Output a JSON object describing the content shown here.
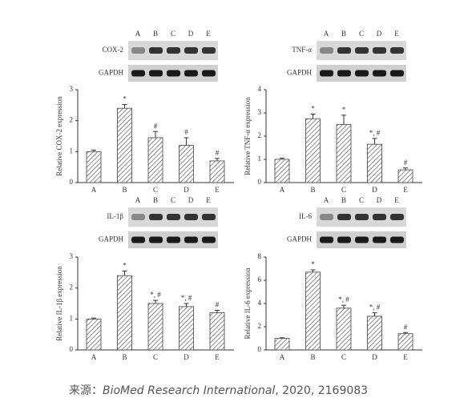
{
  "chart_data": [
    {
      "type": "bar",
      "y_label": "Relative COX-2 expression",
      "blot_lanes": [
        "A",
        "B",
        "C",
        "D",
        "E"
      ],
      "blot_rows": [
        "COX-2",
        "GAPDH"
      ],
      "categories": [
        "A",
        "B",
        "C",
        "D",
        "E"
      ],
      "values": [
        1.0,
        2.4,
        1.45,
        1.2,
        0.7
      ],
      "errors": [
        0.05,
        0.12,
        0.2,
        0.25,
        0.08
      ],
      "annotations": [
        null,
        "*",
        "#",
        "#",
        "#"
      ],
      "color": "#444444",
      "ylim": [
        0,
        3
      ],
      "yticks": [
        0,
        1,
        2,
        3
      ]
    },
    {
      "type": "bar",
      "y_label": "Relative TNF-α expression",
      "blot_lanes": [
        "A",
        "B",
        "C",
        "D",
        "E"
      ],
      "blot_rows": [
        "TNF-α",
        "GAPDH"
      ],
      "categories": [
        "A",
        "B",
        "C",
        "D",
        "E"
      ],
      "values": [
        1.0,
        2.75,
        2.5,
        1.65,
        0.55
      ],
      "errors": [
        0.05,
        0.2,
        0.4,
        0.25,
        0.08
      ],
      "annotations": [
        null,
        "*",
        "*",
        "*, #",
        "#"
      ],
      "color": "#444444",
      "ylim": [
        0,
        4
      ],
      "yticks": [
        0,
        1,
        2,
        3,
        4
      ]
    },
    {
      "type": "bar",
      "y_label": "Relative IL-1β expression",
      "blot_lanes": [
        "A",
        "B",
        "C",
        "D",
        "E"
      ],
      "blot_rows": [
        "IL-1β",
        "GAPDH"
      ],
      "categories": [
        "A",
        "B",
        "C",
        "D",
        "E"
      ],
      "values": [
        1.0,
        2.4,
        1.5,
        1.4,
        1.2
      ],
      "errors": [
        0.03,
        0.15,
        0.1,
        0.1,
        0.08
      ],
      "annotations": [
        null,
        "*",
        "*, #",
        "*, #",
        "#"
      ],
      "color": "#444444",
      "ylim": [
        0,
        3
      ],
      "yticks": [
        0,
        1,
        2,
        3
      ]
    },
    {
      "type": "bar",
      "y_label": "Relative IL-6 expression",
      "blot_lanes": [
        "A",
        "B",
        "C",
        "D",
        "E"
      ],
      "blot_rows": [
        "IL-6",
        "GAPDH"
      ],
      "categories": [
        "A",
        "B",
        "C",
        "D",
        "E"
      ],
      "values": [
        1.0,
        6.7,
        3.6,
        2.9,
        1.4
      ],
      "errors": [
        0.05,
        0.2,
        0.25,
        0.3,
        0.1
      ],
      "annotations": [
        null,
        "*",
        "*, #",
        "*, #",
        "#"
      ],
      "color": "#444444",
      "ylim": [
        0,
        8
      ],
      "yticks": [
        0,
        2,
        4,
        6,
        8
      ]
    }
  ],
  "caption": {
    "prefix": "来源：",
    "journal": "BioMed Research International",
    "rest": ", 2020, 2169083"
  }
}
